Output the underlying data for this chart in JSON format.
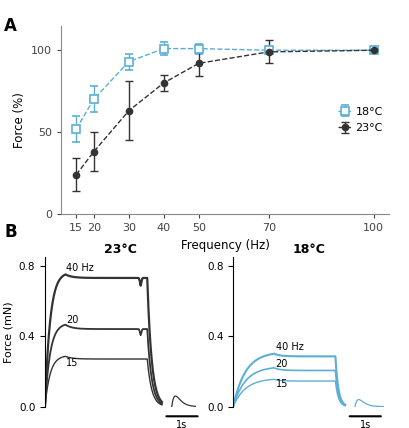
{
  "panel_A": {
    "freq": [
      15,
      20,
      30,
      40,
      50,
      70,
      100
    ],
    "blue_18C": [
      52,
      70,
      93,
      101,
      101,
      100,
      100
    ],
    "blue_18C_err": [
      8,
      8,
      5,
      4,
      3,
      2,
      1
    ],
    "black_23C": [
      24,
      38,
      63,
      80,
      92,
      99,
      100
    ],
    "black_23C_err": [
      10,
      12,
      18,
      5,
      8,
      7,
      1
    ],
    "xlabel": "Frequency (Hz)",
    "ylabel": "Force (%)",
    "legend_18C": "18°C",
    "legend_23C": "23°C",
    "ylim": [
      0,
      115
    ],
    "yticks": [
      0,
      50,
      100
    ]
  },
  "panel_B_left": {
    "title": "23°C",
    "ylabel": "Force (mN)",
    "ylim": [
      0,
      0.85
    ],
    "yticks": [
      0.0,
      0.4,
      0.8
    ],
    "label_40": "40 Hz",
    "label_20": "20",
    "label_15": "15",
    "scale_label": "1s",
    "peak_40": 0.75,
    "plateau_40": 0.73,
    "peak_20": 0.465,
    "plateau_20": 0.44,
    "peak_15": 0.285,
    "plateau_15": 0.27
  },
  "panel_B_right": {
    "title": "18°C",
    "ylim": [
      0,
      0.85
    ],
    "yticks": [
      0.0,
      0.4,
      0.8
    ],
    "label_40": "40 Hz",
    "label_20": "20",
    "label_15": "15",
    "scale_label": "1s",
    "peak_40": 0.3,
    "plateau_40": 0.285,
    "peak_20": 0.22,
    "plateau_20": 0.205,
    "peak_15": 0.155,
    "plateau_15": 0.145
  },
  "colors": {
    "blue": "#5bafd6",
    "black": "#333333",
    "gray": "#555555"
  },
  "background": "#ffffff"
}
